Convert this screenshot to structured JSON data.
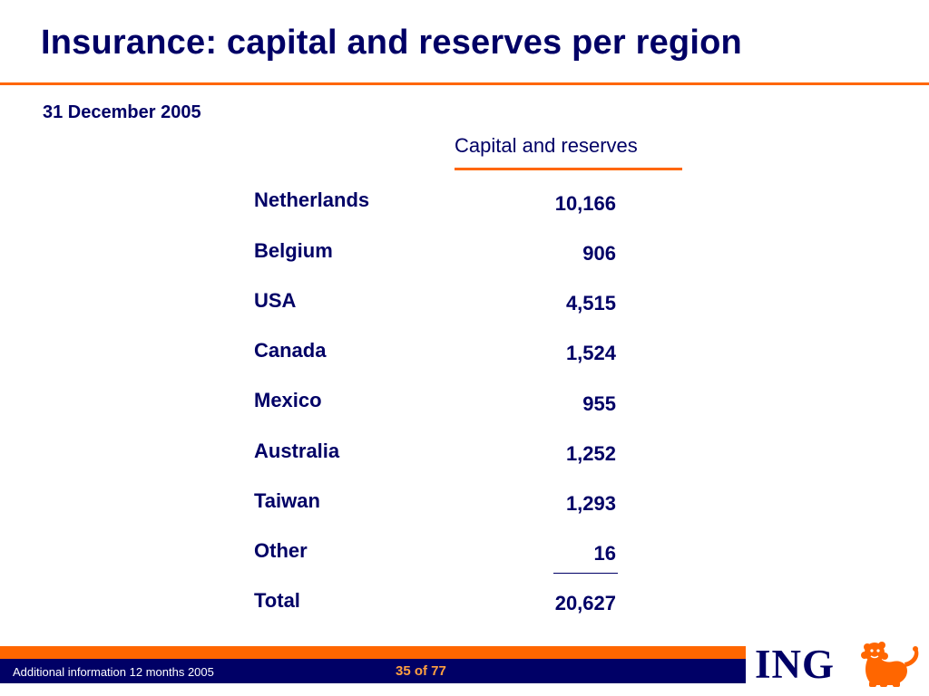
{
  "slide": {
    "title": "Insurance: capital and reserves per region",
    "date": "31 December 2005"
  },
  "table": {
    "column_header": "Capital and reserves",
    "rows": [
      {
        "region": "Netherlands",
        "value": "10,166"
      },
      {
        "region": "Belgium",
        "value": "906"
      },
      {
        "region": "USA",
        "value": "4,515"
      },
      {
        "region": "Canada",
        "value": "1,524"
      },
      {
        "region": "Mexico",
        "value": "955"
      },
      {
        "region": "Australia",
        "value": "1,252"
      },
      {
        "region": "Taiwan",
        "value": "1,293"
      },
      {
        "region": "Other",
        "value": "16"
      }
    ],
    "total": {
      "region": "Total",
      "value": "20,627"
    }
  },
  "footer": {
    "caption": "Additional information 12 months 2005",
    "page": "35 of 77"
  },
  "logo": {
    "text": "ING",
    "icon": "lion-icon"
  },
  "colors": {
    "navy": "#000066",
    "orange": "#ff6600"
  }
}
